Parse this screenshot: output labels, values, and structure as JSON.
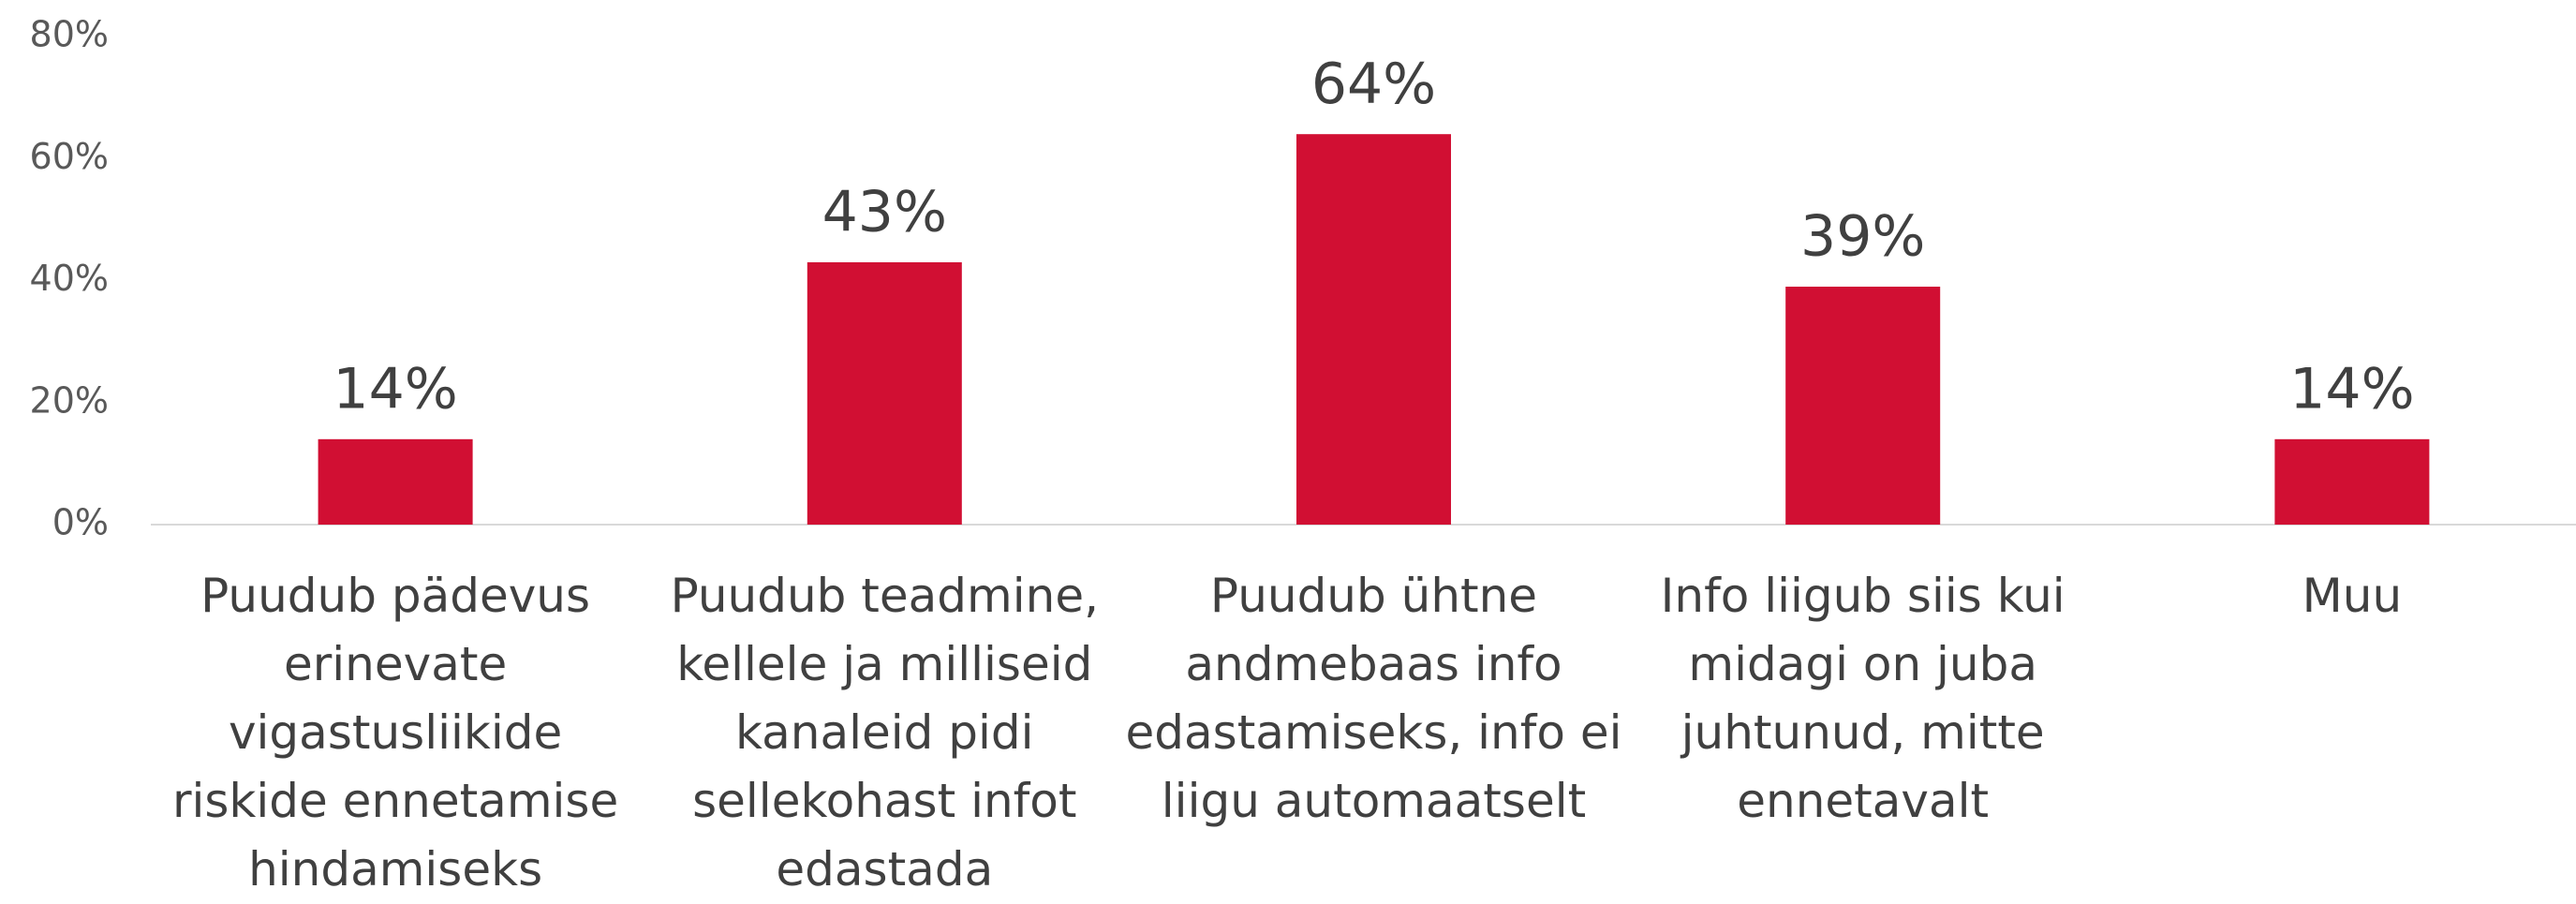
{
  "chart_data": {
    "type": "bar",
    "categories": [
      "Puudub pädevus erinevate vigastusliikide riskide ennetamise hindamiseks",
      "Puudub teadmine, kellele ja milliseid kanaleid pidi sellekohast infot edastada",
      "Puudub ühtne andmebaas info edastamiseks, info ei liigu automaatselt",
      "Info liigub siis kui midagi on juba juhtunud, mitte ennetavalt",
      "Muu"
    ],
    "values": [
      14,
      43,
      64,
      39,
      14
    ],
    "value_labels": [
      "14%",
      "43%",
      "64%",
      "39%",
      "14%"
    ],
    "color": "#d10f33",
    "ylim": [
      0,
      80
    ],
    "yticks": [
      {
        "value": 0,
        "label": "0%"
      },
      {
        "value": 20,
        "label": "20%"
      },
      {
        "value": 40,
        "label": "40%"
      },
      {
        "value": 60,
        "label": "60%"
      },
      {
        "value": 80,
        "label": "80%"
      }
    ],
    "grid": false
  }
}
